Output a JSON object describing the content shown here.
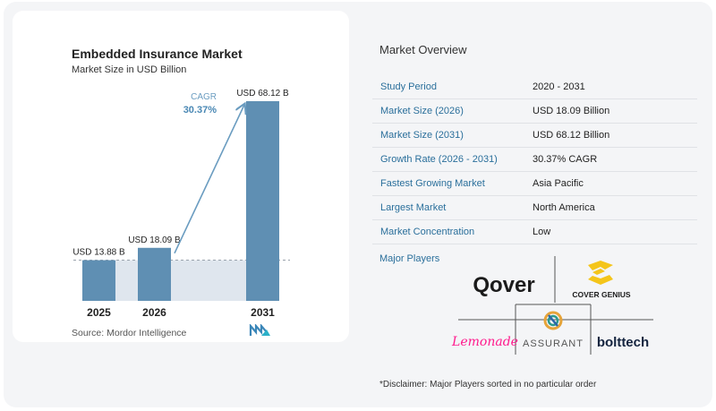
{
  "chart_data": {
    "type": "bar",
    "title": "Embedded Insurance Market",
    "subtitle": "Market Size in USD Billion",
    "categories": [
      "2025",
      "2026",
      "2031"
    ],
    "values": [
      13.88,
      18.09,
      68.12
    ],
    "value_labels": [
      "USD 13.88 B",
      "USD 18.09 B",
      "USD 68.12 B"
    ],
    "cagr_label": "CAGR",
    "cagr_value": "30.37%",
    "bar_color": "#5f8fb3",
    "baseline_color": "#dfe6ee",
    "source": "Source:  Mordor Intelligence"
  },
  "overview": {
    "title": "Market Overview",
    "rows": [
      {
        "key": "Study Period",
        "value": "2020 - 2031"
      },
      {
        "key": "Market Size (2026)",
        "value": "USD 18.09 Billion"
      },
      {
        "key": "Market Size (2031)",
        "value": "USD 68.12 Billion"
      },
      {
        "key": "Growth Rate (2026 - 2031)",
        "value": "30.37% CAGR"
      },
      {
        "key": "Fastest Growing Market",
        "value": "Asia Pacific"
      },
      {
        "key": "Largest Market",
        "value": "North America"
      },
      {
        "key": "Market Concentration",
        "value": "Low"
      }
    ]
  },
  "major_players": {
    "label": "Major Players",
    "players": [
      "Qover",
      "COVER GENIUS",
      "Lemonade",
      "ASSURANT",
      "bolttech"
    ]
  },
  "disclaimer": "*Disclaimer: Major Players sorted in no particular order"
}
